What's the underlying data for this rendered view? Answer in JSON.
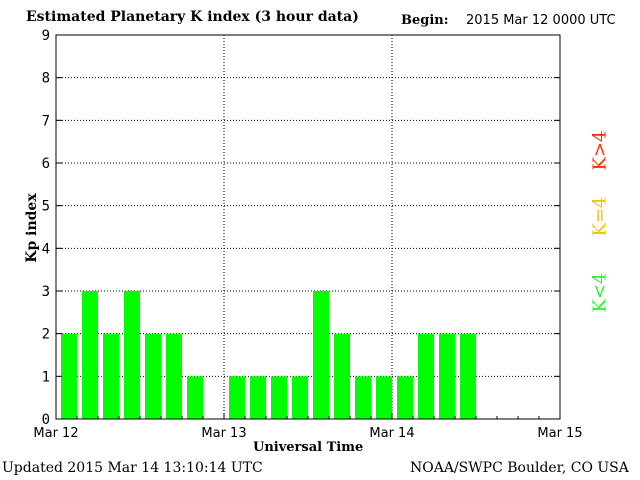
{
  "chart_data": {
    "type": "bar",
    "title": "Estimated Planetary K index (3 hour data)",
    "begin_label": "Begin:",
    "begin_value": "2015 Mar 12 0000 UTC",
    "ylabel": "Kp index",
    "xlabel": "Universal Time",
    "ylim": [
      0,
      9
    ],
    "yticks": [
      "0",
      "1",
      "2",
      "3",
      "4",
      "5",
      "6",
      "7",
      "8",
      "9"
    ],
    "xticks": [
      "Mar 12",
      "Mar 13",
      "Mar 14",
      "Mar 15"
    ],
    "bar_interval_hours": 3,
    "values": [
      2,
      3,
      2,
      3,
      2,
      2,
      1,
      null,
      1,
      1,
      1,
      1,
      3,
      2,
      1,
      1,
      1,
      2,
      2,
      2
    ],
    "bar_color": "#00ff00",
    "grid": true,
    "legend": [
      {
        "label": "K<4",
        "color": "#33ee33"
      },
      {
        "label": "K=4",
        "color": "#f2c200"
      },
      {
        "label": "K>4",
        "color": "#ff2a00"
      }
    ]
  },
  "footer": {
    "updated": "Updated 2015 Mar 14 13:10:14 UTC",
    "credit": "NOAA/SWPC Boulder, CO USA"
  }
}
